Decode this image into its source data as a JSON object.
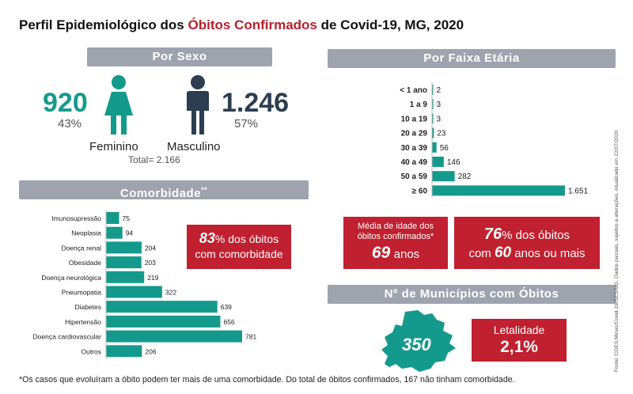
{
  "title": {
    "prefix": "Perfil Epidemiológico dos ",
    "highlight": "Óbitos Confirmados",
    "suffix": " de Covid-19, MG, 2020"
  },
  "sexo": {
    "banner": "Por Sexo",
    "feminino": {
      "value": "920",
      "pct": "43%",
      "label": "Feminino"
    },
    "masculino": {
      "value": "1.246",
      "pct": "57%",
      "label": "Masculino"
    },
    "total": "Total= 2.166"
  },
  "faixa": {
    "banner": "Por Faixa Etária"
  },
  "comorbidade": {
    "banner": "Comorbidade",
    "banner_sup": "**",
    "pct_value": "83",
    "pct_rest": "% dos óbitos",
    "pct_line2": "com comorbidade"
  },
  "media": {
    "line1": "Média de idade dos",
    "line2": "óbitos confirmados*",
    "value": "69",
    "unit": "anos"
  },
  "sessenta": {
    "pct": "76",
    "rest": "% dos óbitos",
    "com": "com ",
    "age": "60",
    "tail": " anos ou mais"
  },
  "municipios": {
    "banner": "Nº de Municípios com Óbitos",
    "value": "350"
  },
  "letalidade": {
    "label": "Letalidade",
    "value": "2,1%"
  },
  "footnote": "*Os casos que evoluíram a óbito podem ter mais de uma comorbidade. Do total de óbitos confirmados, 167 não tinham comorbidade.",
  "source": "Fonte: COES Minas/Covid-19/SES/MG. Dados parciais, sujeitos a alterações. Atualizado em 22/07/2020",
  "colors": {
    "teal": "#149a8c",
    "red": "#c0202f",
    "banner": "#9ea3ae"
  },
  "icons": [
    "female-icon",
    "male-icon",
    "minas-gerais-map-icon"
  ],
  "chart_data": [
    {
      "type": "bar",
      "orientation": "horizontal",
      "categories": [
        "< 1 ano",
        "1 a 9",
        "10 a 19",
        "20 a 29",
        "30 a 39",
        "40 a 49",
        "50 a 59",
        "≥ 60"
      ],
      "values": [
        2,
        3,
        3,
        23,
        56,
        146,
        282,
        1651
      ],
      "value_labels": [
        "2",
        "3",
        "3",
        "23",
        "56",
        "146",
        "282",
        "1.651"
      ],
      "xlim": [
        0,
        1651
      ]
    },
    {
      "type": "bar",
      "orientation": "horizontal",
      "categories": [
        "Imunosupressão",
        "Neoplasia",
        "Doença renal",
        "Obesidade",
        "Doença neurológica",
        "Pneumopatia",
        "Diabetes",
        "Hipertensão",
        "Doença cardiovascular",
        "Outros"
      ],
      "values": [
        75,
        94,
        204,
        203,
        219,
        322,
        639,
        656,
        781,
        206
      ],
      "value_labels": [
        "75",
        "94",
        "204",
        "203",
        "219",
        "322",
        "639",
        "656",
        "781",
        "206"
      ],
      "xlim": [
        0,
        781
      ]
    }
  ]
}
